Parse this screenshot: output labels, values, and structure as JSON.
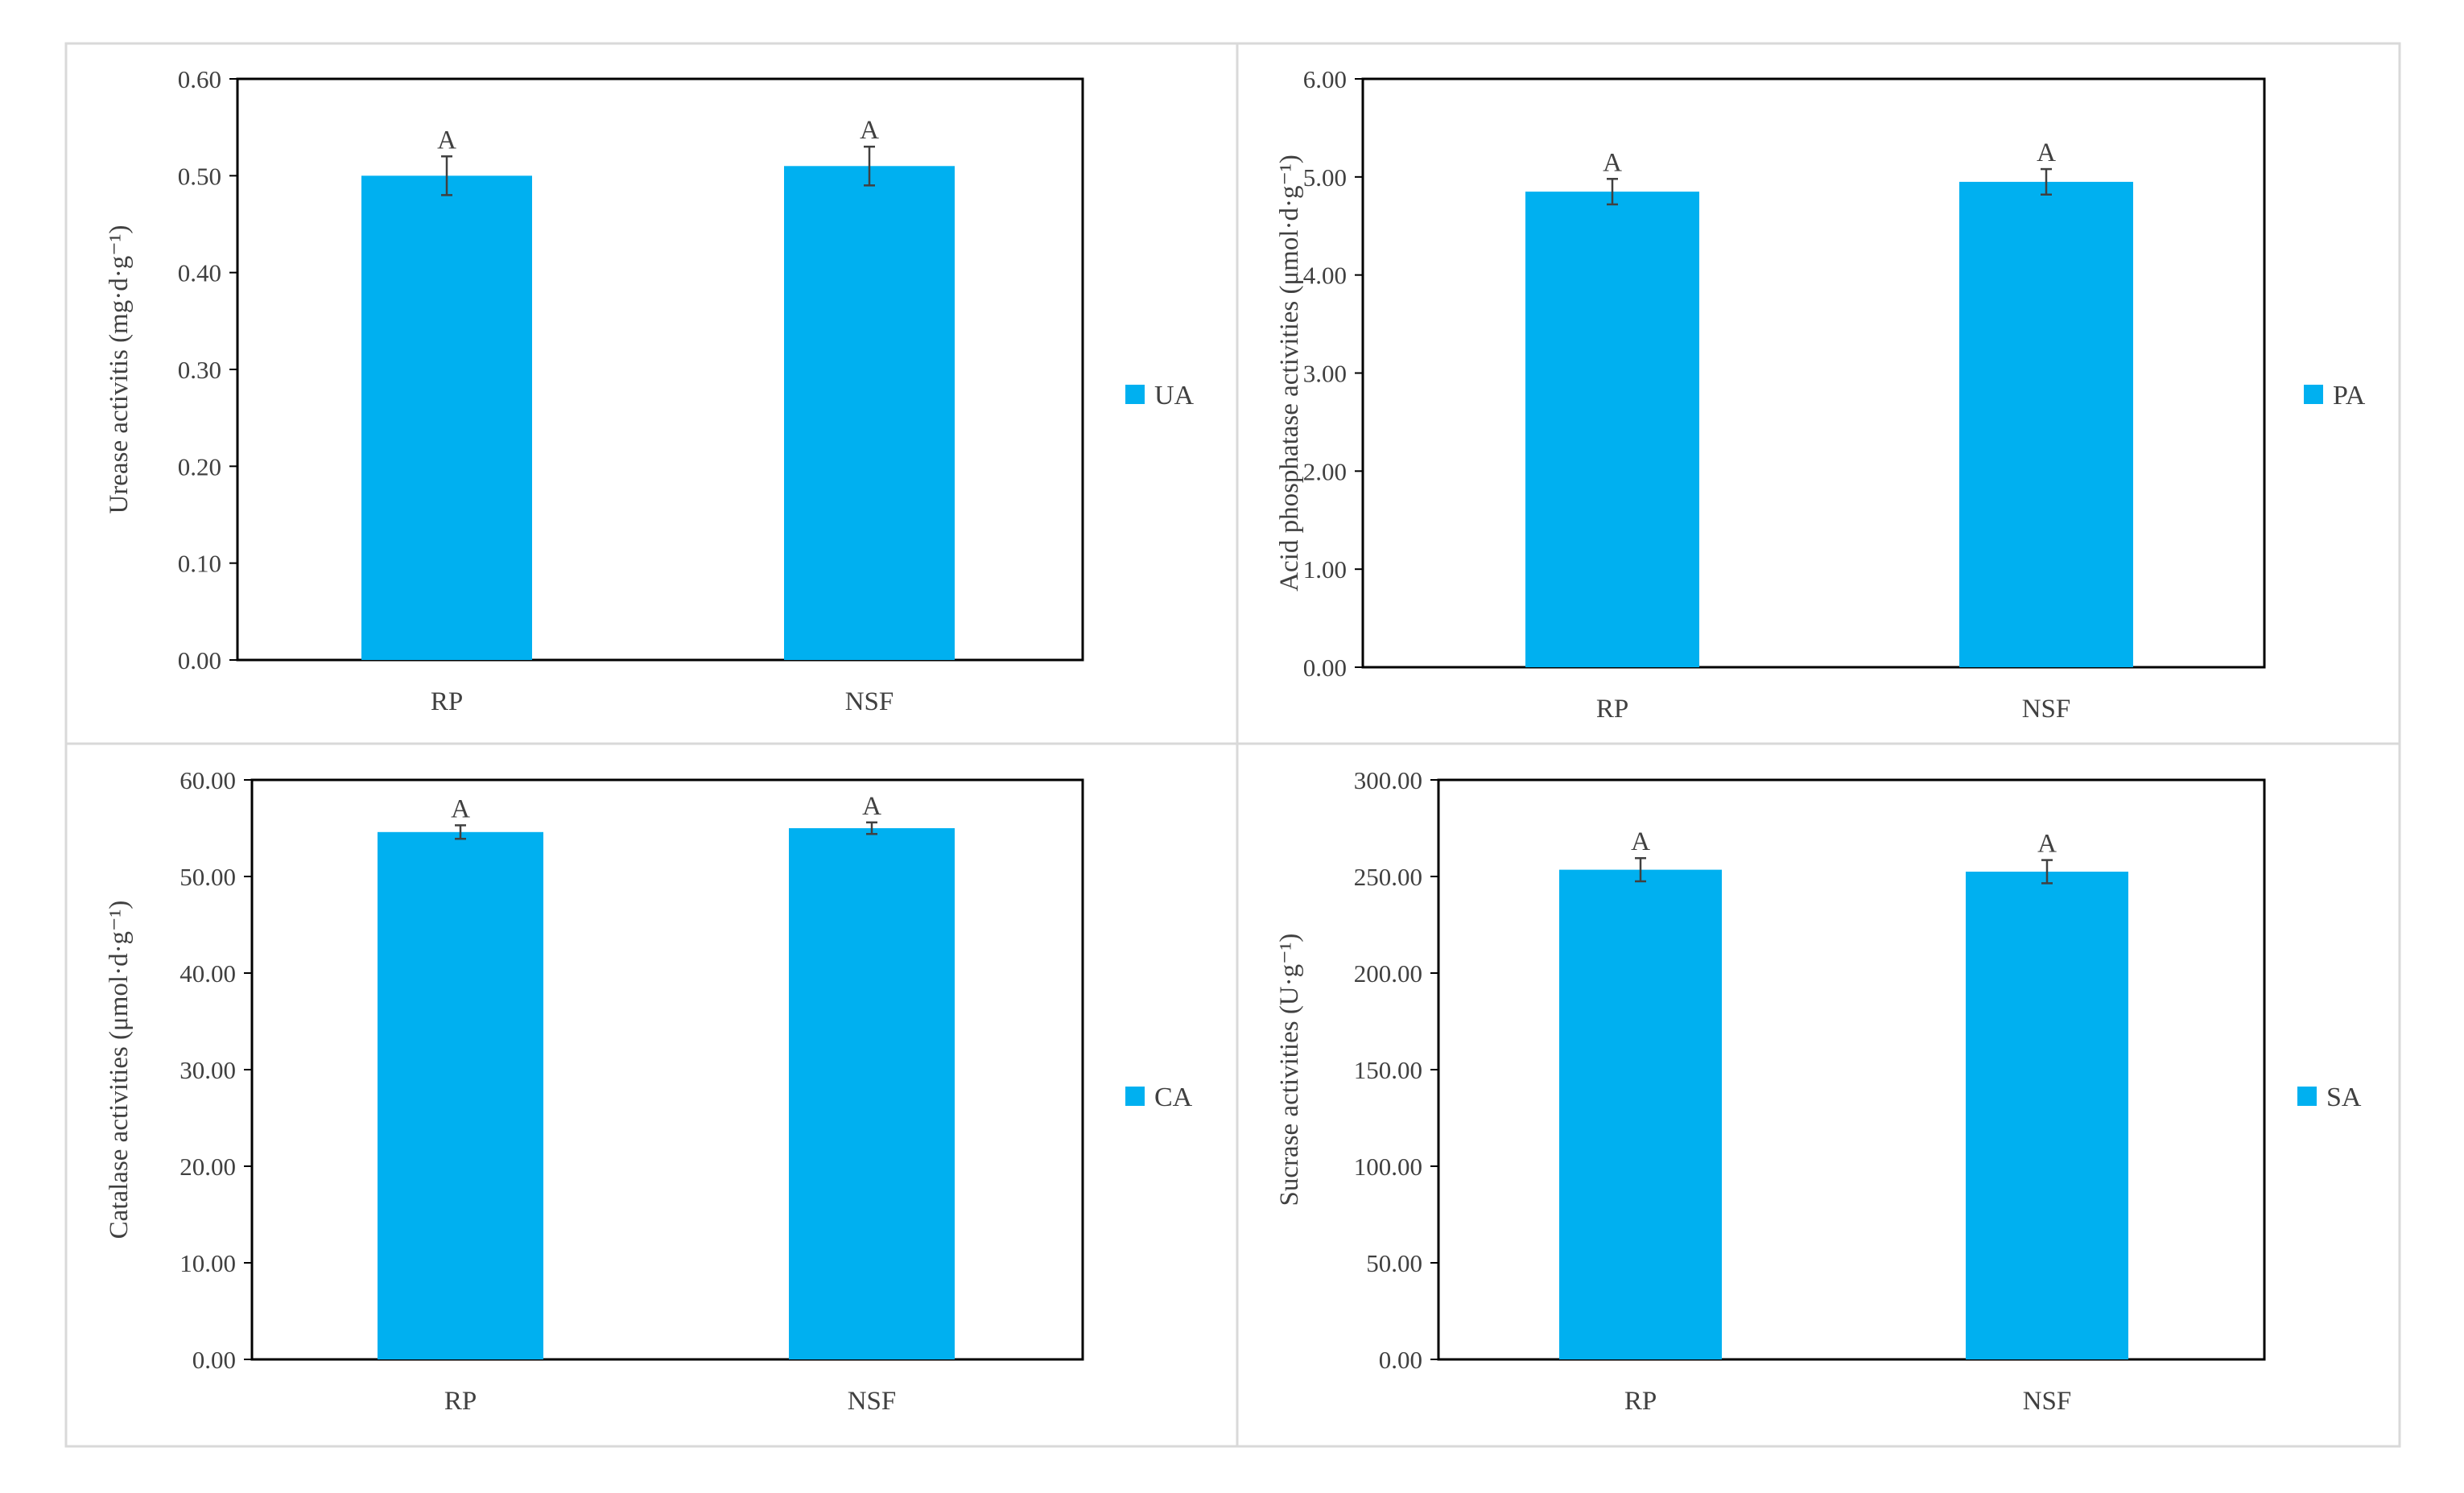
{
  "colors": {
    "bar": "#00B0F0",
    "axis": "#000000",
    "panel_border": "#D9D9D9",
    "text": "#404040",
    "error_bar": "#404040"
  },
  "chart_data": [
    {
      "type": "bar",
      "ylabel": "Urease activitis (mg·d·g⁻¹)",
      "ylim": [
        0,
        0.6
      ],
      "yticks": [
        "0.00",
        "0.10",
        "0.20",
        "0.30",
        "0.40",
        "0.50",
        "0.60"
      ],
      "categories": [
        "RP",
        "NSF"
      ],
      "series": [
        {
          "name": "UA",
          "values": [
            0.5,
            0.51
          ],
          "errors": [
            0.02,
            0.02
          ],
          "labels": [
            "A",
            "A"
          ]
        }
      ],
      "legend": "right"
    },
    {
      "type": "bar",
      "ylabel": "Acid phosphatase activities (μmol·d·g⁻¹)",
      "ylim": [
        0,
        6
      ],
      "yticks": [
        "0.00",
        "1.00",
        "2.00",
        "3.00",
        "4.00",
        "5.00",
        "6.00"
      ],
      "categories": [
        "RP",
        "NSF"
      ],
      "series": [
        {
          "name": "PA",
          "values": [
            4.85,
            4.95
          ],
          "errors": [
            0.13,
            0.13
          ],
          "labels": [
            "A",
            "A"
          ]
        }
      ],
      "legend": "right"
    },
    {
      "type": "bar",
      "ylabel": "Catalase activities (μmol·d·g⁻¹)",
      "ylim": [
        0,
        60
      ],
      "yticks": [
        "0.00",
        "10.00",
        "20.00",
        "30.00",
        "40.00",
        "50.00",
        "60.00"
      ],
      "categories": [
        "RP",
        "NSF"
      ],
      "series": [
        {
          "name": "CA",
          "values": [
            54.6,
            55.0
          ],
          "errors": [
            0.7,
            0.6
          ],
          "labels": [
            "A",
            "A"
          ]
        }
      ],
      "legend": "right"
    },
    {
      "type": "bar",
      "ylabel": "Sucrase activities (U·g⁻¹)",
      "ylim": [
        0,
        300
      ],
      "yticks": [
        "0.00",
        "50.00",
        "100.00",
        "150.00",
        "200.00",
        "250.00",
        "300.00"
      ],
      "categories": [
        "RP",
        "NSF"
      ],
      "series": [
        {
          "name": "SA",
          "values": [
            253.5,
            252.5
          ],
          "errors": [
            6,
            6
          ],
          "labels": [
            "A",
            "A"
          ]
        }
      ],
      "legend": "right"
    }
  ]
}
